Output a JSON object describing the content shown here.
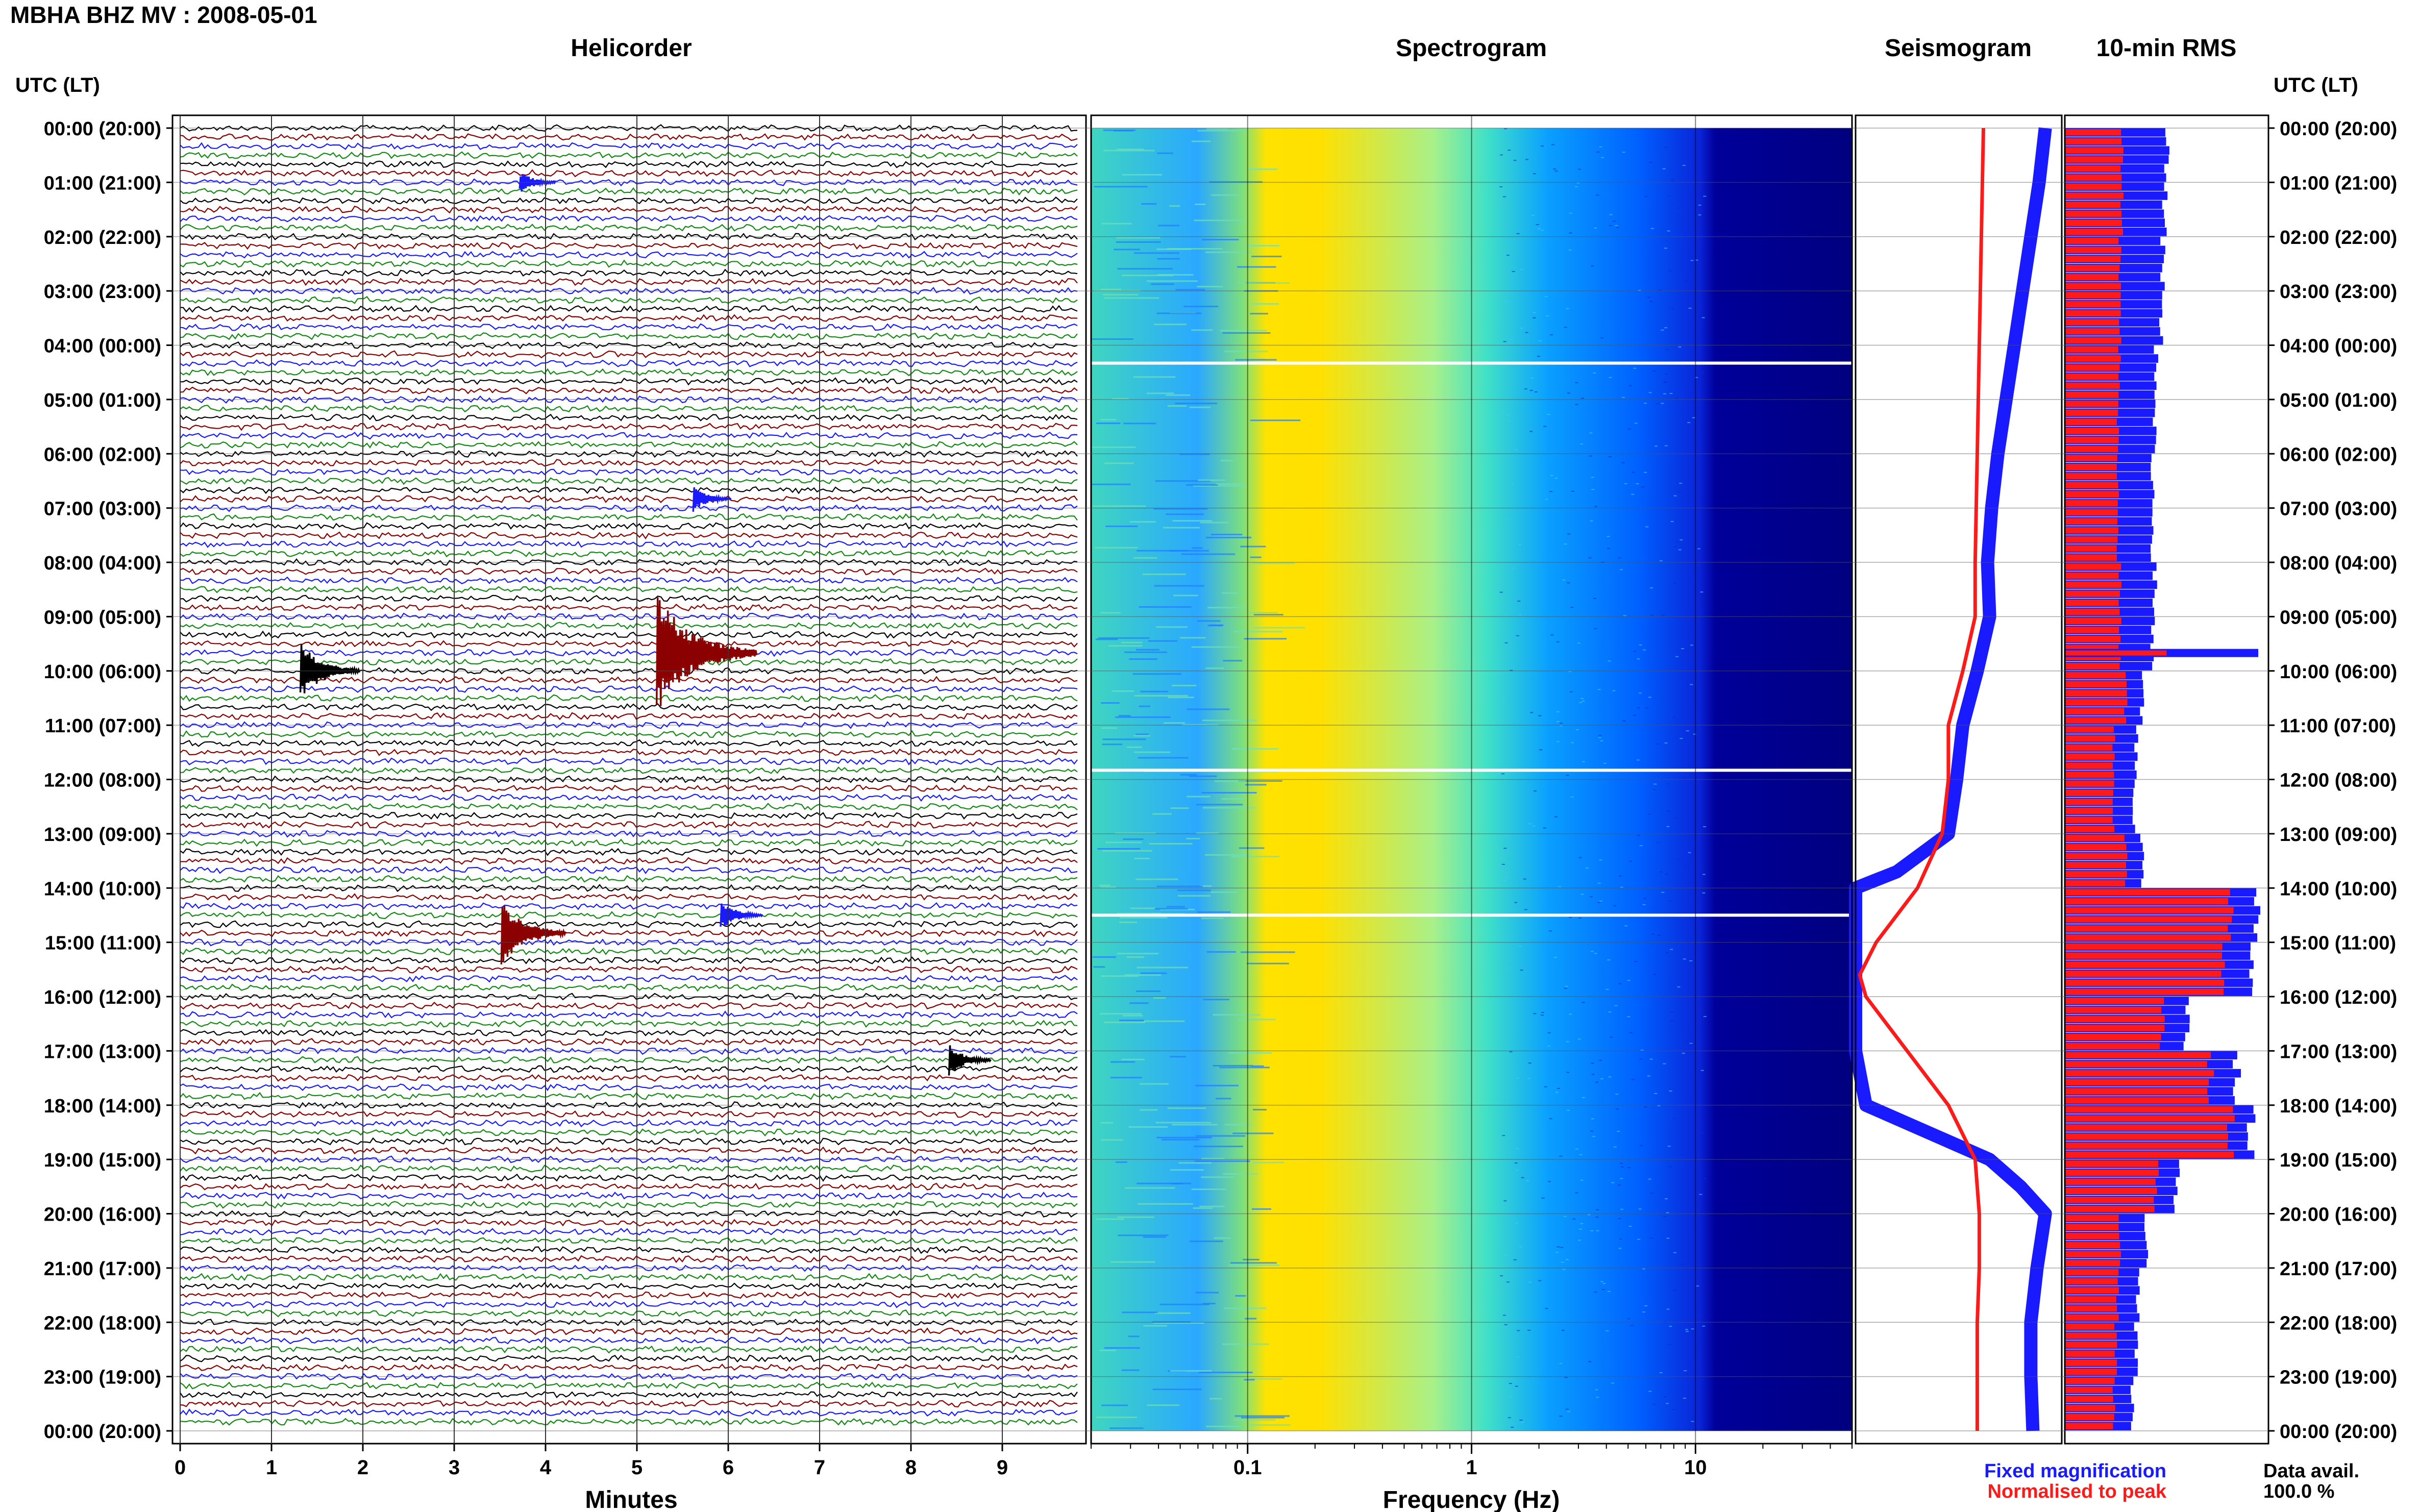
{
  "header": {
    "station_title": "MBHA BHZ MV : 2008-05-01",
    "utc_lt_label": "UTC (LT)"
  },
  "panels": {
    "helicorder": "Helicorder",
    "spectrogram": "Spectrogram",
    "seismogram": "Seismogram",
    "rms": "10-min RMS"
  },
  "legend": {
    "fixed": "Fixed magnification",
    "fixed_color": "#1a1aff",
    "normalised": "Normalised to peak",
    "normalised_color": "#ff1a1a",
    "data_avail_label": "Data avail.",
    "data_avail_value": "100.0 %"
  },
  "colors": {
    "trace_cycle": [
      "#000000",
      "#8b0000",
      "#1a1aff",
      "#138a13"
    ],
    "spectro_low": "#00007f",
    "spectro_mid": "#0040ff",
    "spectro_high": "#ffd200"
  },
  "chart_data": [
    {
      "type": "line",
      "title": "Helicorder",
      "xlabel": "Minutes",
      "x_ticks": [
        "0",
        "1",
        "2",
        "3",
        "4",
        "5",
        "6",
        "7",
        "8",
        "9"
      ],
      "xlim": [
        0,
        10
      ],
      "ylabel": "",
      "y_ticks": [
        "00:00 (20:00)",
        "01:00 (21:00)",
        "02:00 (22:00)",
        "03:00 (23:00)",
        "04:00 (00:00)",
        "05:00 (01:00)",
        "06:00 (02:00)",
        "07:00 (03:00)",
        "08:00 (04:00)",
        "09:00 (05:00)",
        "10:00 (06:00)",
        "11:00 (07:00)",
        "12:00 (08:00)",
        "13:00 (09:00)",
        "14:00 (10:00)",
        "15:00 (11:00)",
        "16:00 (12:00)",
        "17:00 (13:00)",
        "18:00 (14:00)",
        "19:00 (15:00)",
        "20:00 (16:00)",
        "21:00 (17:00)",
        "22:00 (18:00)",
        "23:00 (19:00)",
        "00:00 (20:00)"
      ],
      "y_ticks_right": [
        "00:00 (20:00)",
        "01:00 (21:00)",
        "02:00 (22:00)",
        "03:00 (23:00)",
        "04:00 (00:00)",
        "05:00 (01:00)",
        "06:00 (02:00)",
        "07:00 (03:00)",
        "08:00 (04:00)",
        "09:00 (05:00)",
        "10:00 (06:00)",
        "11:00 (07:00)",
        "12:00 (08:00)",
        "13:00 (09:00)",
        "14:00 (10:00)",
        "15:00 (11:00)",
        "16:00 (12:00)",
        "17:00 (13:00)",
        "18:00 (14:00)",
        "19:00 (15:00)",
        "20:00 (16:00)",
        "21:00 (17:00)",
        "22:00 (18:00)",
        "23:00 (19:00)",
        "00:00 (20:00)"
      ],
      "traces_per_hour": 6,
      "events": [
        {
          "hour": 9.67,
          "minute": 5.3,
          "amplitude": 4.5,
          "color": "#8b0000"
        },
        {
          "hour": 10.0,
          "minute": 1.4,
          "amplitude": 2.2,
          "color": "#000000"
        },
        {
          "hour": 14.83,
          "minute": 3.6,
          "amplitude": 2.5,
          "color": "#8b0000"
        },
        {
          "hour": 14.5,
          "minute": 6.0,
          "amplitude": 1.2,
          "color": "#1a1aff"
        },
        {
          "hour": 17.17,
          "minute": 8.5,
          "amplitude": 1.2,
          "color": "#000000"
        },
        {
          "hour": 6.83,
          "minute": 5.7,
          "amplitude": 1.0,
          "color": "#1a1aff"
        },
        {
          "hour": 1.0,
          "minute": 3.8,
          "amplitude": 0.9,
          "color": "#1a1aff"
        }
      ]
    },
    {
      "type": "heatmap",
      "title": "Spectrogram",
      "xlabel": "Frequency (Hz)",
      "x_scale": "log",
      "xlim": [
        0.02,
        50
      ],
      "x_ticks": [
        "0.1",
        "1",
        "10"
      ],
      "gaps_hours": [
        4.33,
        11.83,
        14.5
      ]
    },
    {
      "type": "line",
      "title": "Seismogram",
      "series": [
        {
          "name": "Fixed magnification",
          "color": "#1a1aff",
          "hours": [
            0,
            1,
            2,
            3,
            4,
            5,
            6,
            7,
            8,
            9,
            10,
            11,
            12,
            13,
            13.7,
            14,
            15,
            16,
            17,
            18,
            19,
            19.5,
            20,
            21,
            22,
            23,
            24
          ],
          "values": [
            0.92,
            0.89,
            0.85,
            0.81,
            0.77,
            0.73,
            0.69,
            0.66,
            0.64,
            0.65,
            0.59,
            0.52,
            0.49,
            0.45,
            0.2,
            0.0,
            0.0,
            0.0,
            0.0,
            0.05,
            0.65,
            0.8,
            0.92,
            0.88,
            0.85,
            0.85,
            0.86
          ]
        },
        {
          "name": "Normalised to peak",
          "color": "#ff1a1a",
          "hours": [
            0,
            2,
            4,
            6,
            8,
            9,
            10,
            11,
            12,
            13,
            14,
            15,
            15.6,
            16,
            17,
            18,
            19,
            20,
            21,
            22,
            23,
            24
          ],
          "values": [
            0.62,
            0.61,
            0.6,
            0.59,
            0.58,
            0.58,
            0.52,
            0.45,
            0.45,
            0.42,
            0.3,
            0.1,
            0.02,
            0.05,
            0.25,
            0.45,
            0.58,
            0.6,
            0.6,
            0.59,
            0.59,
            0.59
          ]
        }
      ]
    },
    {
      "type": "bar",
      "title": "10-min RMS",
      "series": [
        {
          "name": "Fixed magnification",
          "color": "#1a1aff",
          "hourly_values": [
            0.5,
            0.49,
            0.48,
            0.47,
            0.45,
            0.44,
            0.43,
            0.43,
            0.44,
            0.43,
            0.38,
            0.35,
            0.34,
            0.38,
            0.95,
            0.92,
            0.6,
            0.85,
            0.92,
            0.55,
            0.4,
            0.36,
            0.35,
            0.33
          ]
        },
        {
          "name": "Normalised to peak",
          "color": "#ff1a1a",
          "hourly_values": [
            0.28,
            0.28,
            0.27,
            0.27,
            0.27,
            0.26,
            0.26,
            0.26,
            0.27,
            0.27,
            0.3,
            0.24,
            0.24,
            0.3,
            0.82,
            0.78,
            0.48,
            0.72,
            0.82,
            0.45,
            0.27,
            0.26,
            0.25,
            0.24
          ]
        }
      ],
      "peak_event": {
        "hour": 9.67,
        "fixed": 0.95,
        "normalised": 0.5
      }
    }
  ]
}
